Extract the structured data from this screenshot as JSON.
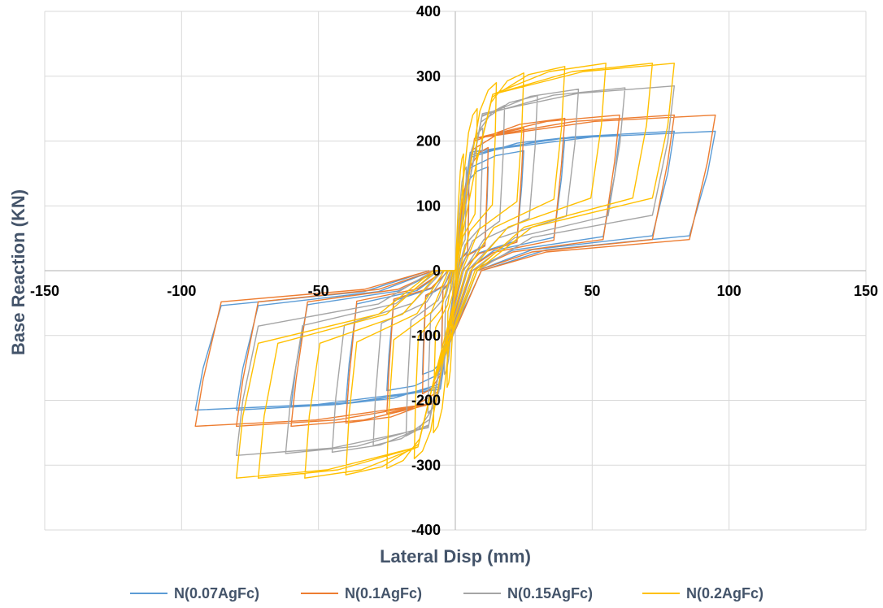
{
  "chart_data": {
    "type": "line",
    "title": "",
    "xlabel": "Lateral Disp (mm)",
    "ylabel": "Base Reaction (KN)",
    "xlim": [
      -150,
      150
    ],
    "ylim": [
      -400,
      400
    ],
    "x_ticks": [
      -150,
      -100,
      -50,
      0,
      50,
      100,
      150
    ],
    "y_ticks": [
      -400,
      -300,
      -200,
      -100,
      0,
      100,
      200,
      300,
      400
    ],
    "x_tick_labels": [
      "-150",
      "-100",
      "-50",
      "0",
      "50",
      "100",
      "150"
    ],
    "y_tick_labels": [
      "-400",
      "-300",
      "-200",
      "-100",
      "0",
      "100",
      "200",
      "300",
      "400"
    ],
    "grid": true,
    "legend_position": "bottom",
    "series": [
      {
        "name": "N(0.07AgFc)",
        "color": "#5b9bd5",
        "peaks": [
          [
            5,
            60
          ],
          [
            12,
            120
          ],
          [
            25,
            170
          ],
          [
            40,
            190
          ],
          [
            60,
            205
          ],
          [
            80,
            210
          ],
          [
            95,
            215
          ]
        ],
        "peak_loads": [
          120,
          160,
          185,
          205,
          210,
          215,
          215
        ],
        "unload_level": 0.25
      },
      {
        "name": "N(0.1AgFc)",
        "color": "#ed7d31",
        "peaks": [
          [
            5,
            70
          ],
          [
            12,
            140
          ],
          [
            25,
            200
          ],
          [
            40,
            220
          ],
          [
            60,
            235
          ],
          [
            80,
            240
          ],
          [
            95,
            240
          ]
        ],
        "peak_loads": [
          140,
          190,
          220,
          235,
          240,
          240,
          240
        ],
        "unload_level": 0.2
      },
      {
        "name": "N(0.15AgFc)",
        "color": "#a5a5a5",
        "peaks": [
          [
            4,
            80
          ],
          [
            10,
            160
          ],
          [
            18,
            220
          ],
          [
            30,
            255
          ],
          [
            45,
            270
          ],
          [
            62,
            280
          ],
          [
            80,
            282
          ]
        ],
        "peak_loads": [
          160,
          220,
          255,
          270,
          280,
          282,
          285
        ],
        "unload_level": 0.3
      },
      {
        "name": "N(0.2AgFc)",
        "color": "#ffc000",
        "peaks": [
          [
            3,
            90
          ],
          [
            8,
            180
          ],
          [
            15,
            250
          ],
          [
            25,
            290
          ],
          [
            40,
            305
          ],
          [
            55,
            315
          ],
          [
            72,
            320
          ],
          [
            80,
            320
          ]
        ],
        "peak_loads": [
          180,
          250,
          290,
          305,
          315,
          320,
          320,
          320
        ],
        "unload_level": 0.35
      }
    ]
  }
}
